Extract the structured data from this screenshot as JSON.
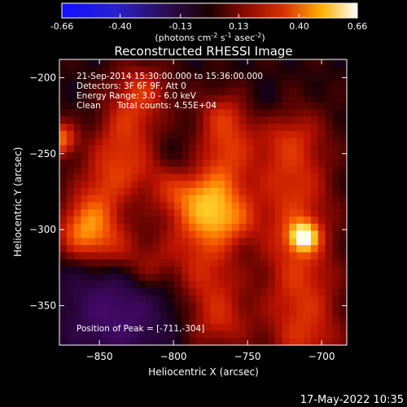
{
  "colorbar": {
    "min": -0.66,
    "max": 0.66,
    "ticks": [
      "-0.66",
      "-0.40",
      "-0.13",
      "0.13",
      "0.40",
      "0.66"
    ],
    "units_main": "(photons cm",
    "units_sup1": "-2",
    "units_mid": " s",
    "units_sup2": "-1",
    "units_end": " asec",
    "units_sup3": "-2",
    "units_close": ")"
  },
  "chart_data": {
    "type": "heatmap",
    "title": "Reconstructed RHESSI Image",
    "xlabel": "Heliocentric X (arcsec)",
    "ylabel": "Heliocentric Y (arcsec)",
    "xlim": [
      -877,
      -683
    ],
    "ylim": [
      -376,
      -188
    ],
    "x_ticks": [
      -850,
      -800,
      -750,
      -700
    ],
    "y_ticks": [
      -200,
      -250,
      -300,
      -350
    ],
    "colormap": "RHESSI red-temperature with blue/purple negative side",
    "peak_position": [
      -711,
      -304
    ],
    "sources": [
      {
        "x": -711,
        "y": -304,
        "relative_intensity": 1.0
      },
      {
        "x": -877,
        "y": -238,
        "relative_intensity": 0.75
      }
    ]
  },
  "annotations": {
    "time_range": "21-Sep-2014 15:30:00.000 to 15:36:00.000",
    "detectors": "Detectors: 3F 6F 9F, Att 0",
    "energy": "Energy Range: 3.0 - 6.0 keV",
    "method": "Clean",
    "total_counts": "Total counts: 4.55E+04",
    "peak": "Position of Peak = [-711,-304]"
  },
  "footer_date": "17-May-2022 10:35"
}
